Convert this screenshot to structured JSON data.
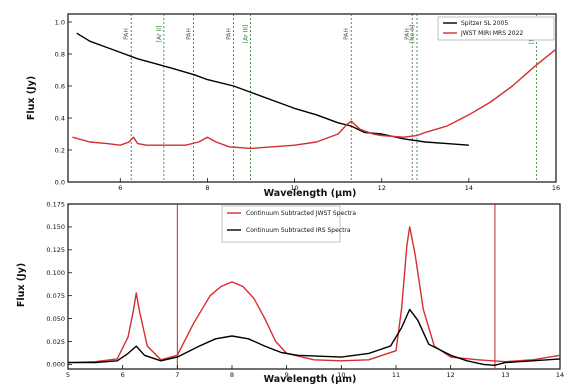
{
  "chart_data": [
    {
      "type": "line",
      "panel": "top",
      "xlabel": "Wavelength (μm)",
      "ylabel": "Flux (Jy)",
      "xlim": [
        4.8,
        16
      ],
      "ylim": [
        0.0,
        1.05
      ],
      "xticks": [
        6,
        8,
        10,
        12,
        14,
        16
      ],
      "yticks": [
        0.0,
        0.2,
        0.4,
        0.6,
        0.8,
        1.0
      ],
      "ytick_labels": [
        "0.0",
        "0.2",
        "0.4",
        "0.6",
        "0.8",
        "1.0"
      ],
      "grid": false,
      "legend_position": "top-right",
      "series": [
        {
          "name": "Spitzer SL 2005",
          "color": "#000000",
          "x": [
            5.0,
            5.3,
            5.6,
            6.0,
            6.4,
            6.8,
            7.2,
            7.7,
            8.0,
            8.6,
            9.0,
            9.5,
            10.0,
            10.5,
            11.0,
            11.3,
            11.6,
            12.0,
            12.5,
            13.0,
            13.5,
            14.0
          ],
          "y": [
            0.93,
            0.88,
            0.85,
            0.81,
            0.77,
            0.74,
            0.71,
            0.67,
            0.64,
            0.6,
            0.56,
            0.51,
            0.46,
            0.42,
            0.37,
            0.35,
            0.31,
            0.3,
            0.27,
            0.25,
            0.24,
            0.23
          ]
        },
        {
          "name": "JWST MIRI MRS 2022",
          "color": "#d32f2f",
          "x": [
            4.9,
            5.3,
            5.7,
            6.0,
            6.2,
            6.3,
            6.4,
            6.6,
            7.0,
            7.5,
            7.8,
            8.0,
            8.2,
            8.5,
            9.0,
            9.5,
            10.0,
            10.5,
            11.0,
            11.2,
            11.3,
            11.5,
            11.8,
            12.0,
            12.5,
            12.8,
            13.0,
            13.5,
            14.0,
            14.5,
            15.0,
            15.5,
            16.0
          ],
          "y": [
            0.28,
            0.25,
            0.24,
            0.23,
            0.25,
            0.28,
            0.24,
            0.23,
            0.23,
            0.23,
            0.25,
            0.28,
            0.25,
            0.22,
            0.21,
            0.22,
            0.23,
            0.25,
            0.3,
            0.36,
            0.38,
            0.33,
            0.3,
            0.29,
            0.28,
            0.29,
            0.31,
            0.35,
            0.42,
            0.5,
            0.6,
            0.72,
            0.83
          ]
        }
      ],
      "vlines": [
        {
          "x": 6.25,
          "label": "PAH",
          "color": "#555555"
        },
        {
          "x": 7.0,
          "label": "[Ar II]",
          "color": "#2e7d32"
        },
        {
          "x": 7.68,
          "label": "PAH",
          "color": "#555555"
        },
        {
          "x": 8.6,
          "label": "PAH",
          "color": "#555555"
        },
        {
          "x": 8.99,
          "label": "[Ar III]",
          "color": "#2e7d32"
        },
        {
          "x": 11.3,
          "label": "PAH",
          "color": "#555555"
        },
        {
          "x": 12.7,
          "label": "PAH",
          "color": "#555555"
        },
        {
          "x": 12.81,
          "label": "[Ne II]",
          "color": "#2e7d32"
        },
        {
          "x": 15.55,
          "label": "[Ne III]",
          "color": "#2e7d32"
        }
      ]
    },
    {
      "type": "line",
      "panel": "bottom",
      "xlabel": "Wavelength (μm)",
      "ylabel": "Flux (Jy)",
      "xlim": [
        5,
        14
      ],
      "ylim": [
        -0.005,
        0.175
      ],
      "xticks": [
        5,
        6,
        7,
        8,
        9,
        10,
        11,
        12,
        13,
        14
      ],
      "yticks": [
        0.0,
        0.025,
        0.05,
        0.075,
        0.1,
        0.125,
        0.15,
        0.175
      ],
      "ytick_labels": [
        "0.000",
        "0.025",
        "0.050",
        "0.075",
        "0.100",
        "0.125",
        "0.150",
        "0.175"
      ],
      "grid": false,
      "legend_position": "top-center",
      "series": [
        {
          "name": "Continuum Subtracted JWST Spectra",
          "color": "#d32f2f",
          "x": [
            5.0,
            5.5,
            5.9,
            6.1,
            6.2,
            6.25,
            6.3,
            6.45,
            6.7,
            7.0,
            7.3,
            7.6,
            7.8,
            8.0,
            8.2,
            8.4,
            8.6,
            8.8,
            9.0,
            9.5,
            10.0,
            10.5,
            11.0,
            11.1,
            11.2,
            11.25,
            11.35,
            11.5,
            11.7,
            12.0,
            12.5,
            13.0,
            13.5,
            14.0
          ],
          "y": [
            0.002,
            0.003,
            0.006,
            0.03,
            0.06,
            0.078,
            0.06,
            0.02,
            0.005,
            0.01,
            0.045,
            0.075,
            0.085,
            0.09,
            0.085,
            0.072,
            0.05,
            0.025,
            0.012,
            0.005,
            0.004,
            0.005,
            0.015,
            0.06,
            0.13,
            0.15,
            0.12,
            0.06,
            0.02,
            0.008,
            0.005,
            0.003,
            0.005,
            0.01
          ]
        },
        {
          "name": "Continuum Subtracted IRS Spectra",
          "color": "#000000",
          "x": [
            5.0,
            5.5,
            5.9,
            6.1,
            6.25,
            6.4,
            6.7,
            7.0,
            7.4,
            7.7,
            8.0,
            8.3,
            8.6,
            8.9,
            9.2,
            9.6,
            10.0,
            10.5,
            10.9,
            11.1,
            11.25,
            11.4,
            11.6,
            12.0,
            12.3,
            12.6,
            12.8,
            13.0,
            13.5,
            14.0
          ],
          "y": [
            0.002,
            0.002,
            0.004,
            0.012,
            0.02,
            0.01,
            0.004,
            0.008,
            0.02,
            0.028,
            0.031,
            0.028,
            0.02,
            0.013,
            0.01,
            0.009,
            0.008,
            0.012,
            0.02,
            0.04,
            0.06,
            0.048,
            0.022,
            0.01,
            0.004,
            0.0,
            -0.001,
            0.002,
            0.004,
            0.006
          ]
        }
      ],
      "vlines": [
        {
          "x": 7.0,
          "color": "#c62828"
        },
        {
          "x": 12.81,
          "color": "#c62828"
        }
      ]
    }
  ]
}
